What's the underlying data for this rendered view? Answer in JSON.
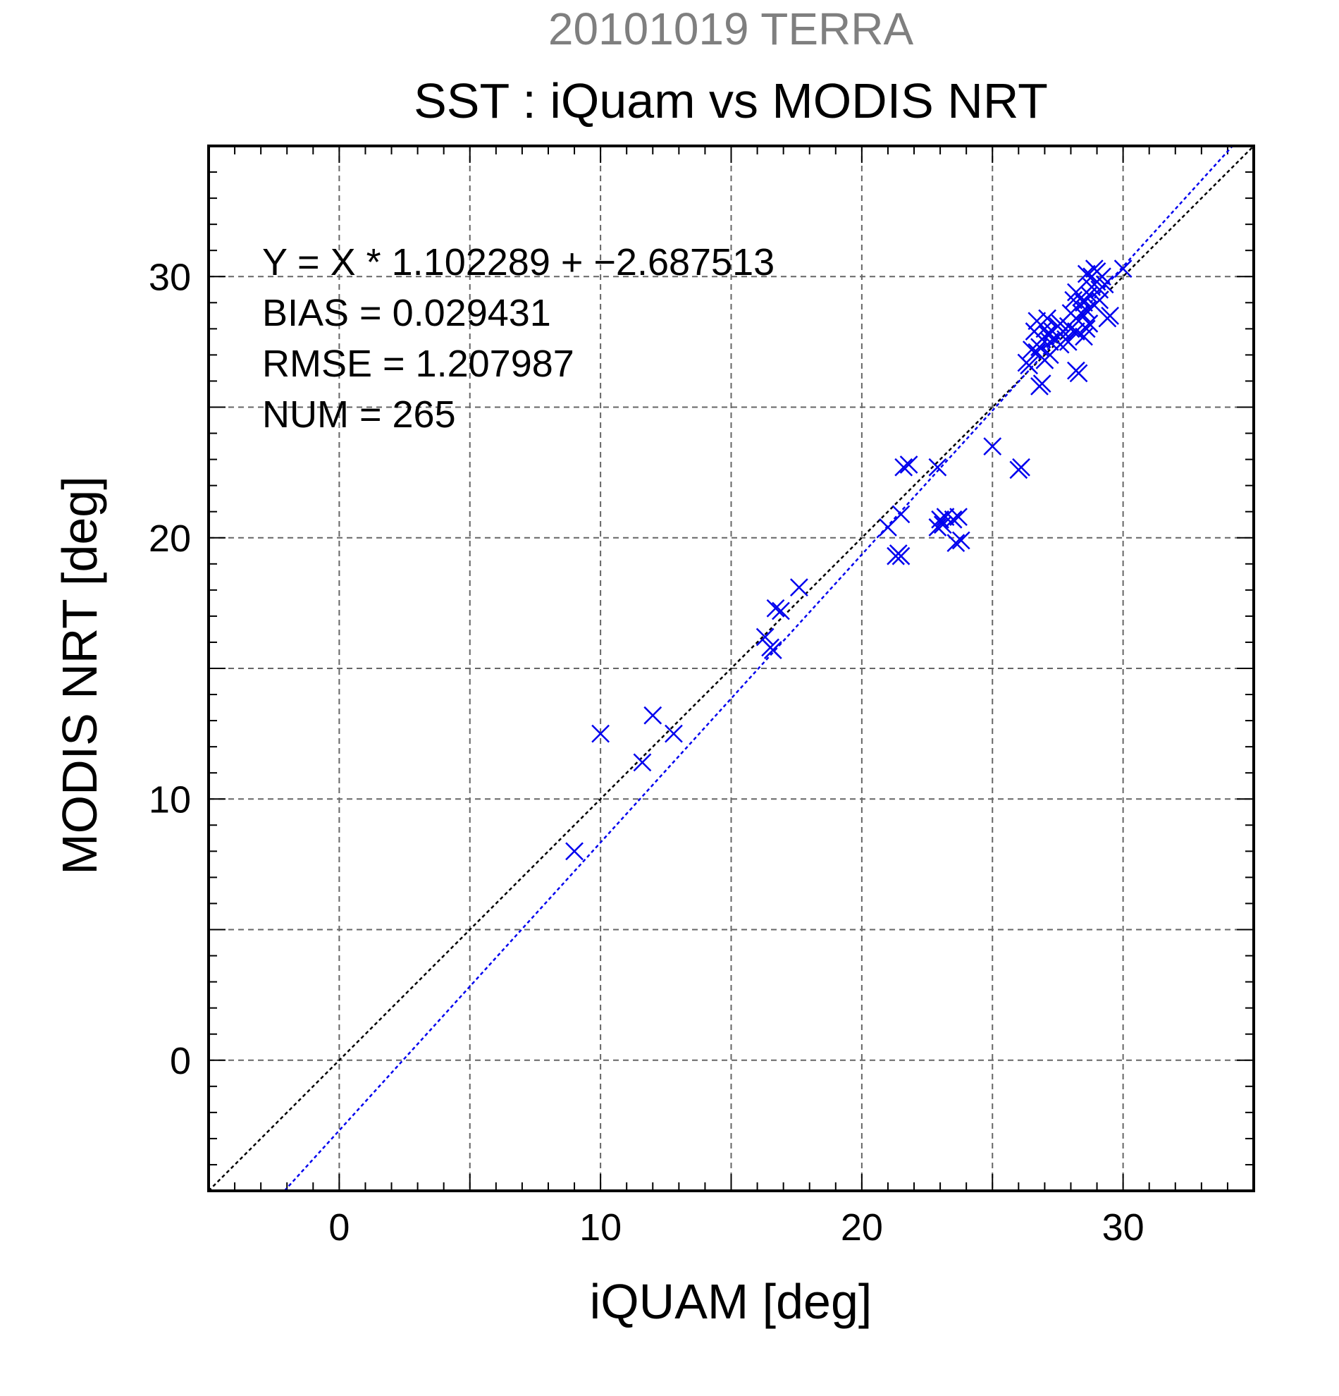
{
  "chart_data": {
    "type": "scatter",
    "supertitle": "20101019 TERRA",
    "title": "SST : iQuam vs MODIS NRT",
    "xlabel": "iQUAM [deg]",
    "ylabel": "MODIS NRT [deg]",
    "xlim": [
      -5,
      35
    ],
    "ylim": [
      -5,
      35
    ],
    "xticks": [
      0,
      10,
      20,
      30
    ],
    "yticks": [
      0,
      10,
      20,
      30
    ],
    "grid": true,
    "marker": "x",
    "annotation_lines": [
      "Y = X * 1.102289 + −2.687513",
      "BIAS = 0.029431",
      "RMSE = 1.207987",
      "NUM = 265"
    ],
    "reference_lines": [
      {
        "kind": "identity",
        "slope": 1,
        "intercept": 0,
        "color": "#000000"
      },
      {
        "kind": "regression",
        "slope": 1.102289,
        "intercept": -2.687513,
        "color": "#0000ee"
      }
    ],
    "series": [
      {
        "color": "#0000ee",
        "points": [
          [
            9.0,
            8.0
          ],
          [
            10.0,
            12.5
          ],
          [
            11.6,
            11.4
          ],
          [
            12.0,
            13.2
          ],
          [
            12.8,
            12.5
          ],
          [
            16.3,
            16.2
          ],
          [
            16.5,
            15.8
          ],
          [
            16.6,
            15.7
          ],
          [
            16.7,
            17.3
          ],
          [
            16.9,
            17.2
          ],
          [
            17.6,
            18.1
          ],
          [
            21.0,
            20.4
          ],
          [
            21.3,
            19.3
          ],
          [
            21.4,
            19.4
          ],
          [
            21.5,
            19.3
          ],
          [
            21.5,
            20.9
          ],
          [
            21.6,
            22.7
          ],
          [
            21.8,
            22.8
          ],
          [
            22.9,
            22.7
          ],
          [
            22.9,
            20.4
          ],
          [
            23.0,
            20.7
          ],
          [
            23.1,
            20.5
          ],
          [
            23.2,
            20.8
          ],
          [
            23.5,
            20.7
          ],
          [
            23.6,
            19.8
          ],
          [
            23.8,
            19.9
          ],
          [
            23.7,
            20.8
          ],
          [
            25.0,
            23.5
          ],
          [
            26.0,
            22.6
          ],
          [
            26.1,
            22.7
          ],
          [
            26.3,
            26.7
          ],
          [
            26.5,
            27.2
          ],
          [
            26.6,
            27.9
          ],
          [
            26.7,
            28.3
          ],
          [
            26.8,
            25.8
          ],
          [
            26.9,
            25.9
          ],
          [
            26.8,
            27.3
          ],
          [
            26.9,
            27.6
          ],
          [
            27.0,
            28.0
          ],
          [
            27.1,
            28.4
          ],
          [
            27.0,
            26.8
          ],
          [
            27.2,
            27.0
          ],
          [
            27.2,
            27.5
          ],
          [
            27.3,
            27.9
          ],
          [
            27.4,
            27.6
          ],
          [
            27.5,
            28.1
          ],
          [
            27.6,
            27.4
          ],
          [
            27.7,
            27.9
          ],
          [
            27.8,
            27.6
          ],
          [
            27.9,
            28.1
          ],
          [
            28.0,
            28.6
          ],
          [
            28.1,
            29.1
          ],
          [
            28.2,
            26.4
          ],
          [
            28.3,
            26.3
          ],
          [
            28.2,
            27.9
          ],
          [
            28.3,
            28.3
          ],
          [
            28.4,
            28.6
          ],
          [
            28.4,
            29.2
          ],
          [
            28.5,
            27.7
          ],
          [
            28.6,
            28.0
          ],
          [
            28.6,
            28.7
          ],
          [
            28.7,
            29.3
          ],
          [
            28.8,
            29.6
          ],
          [
            28.8,
            30.0
          ],
          [
            28.9,
            30.3
          ],
          [
            29.0,
            29.8
          ],
          [
            29.1,
            29.5
          ],
          [
            29.0,
            30.2
          ],
          [
            29.2,
            30.0
          ],
          [
            29.3,
            29.7
          ],
          [
            28.9,
            28.9
          ],
          [
            28.7,
            28.2
          ],
          [
            29.4,
            28.4
          ],
          [
            29.5,
            28.5
          ],
          [
            30.0,
            30.3
          ],
          [
            26.4,
            26.6
          ],
          [
            26.7,
            27.1
          ],
          [
            27.1,
            27.8
          ],
          [
            27.6,
            28.2
          ],
          [
            28.0,
            28.0
          ],
          [
            28.5,
            29.0
          ],
          [
            29.1,
            29.1
          ],
          [
            28.6,
            30.1
          ],
          [
            28.2,
            29.4
          ],
          [
            27.9,
            27.5
          ]
        ]
      }
    ]
  }
}
